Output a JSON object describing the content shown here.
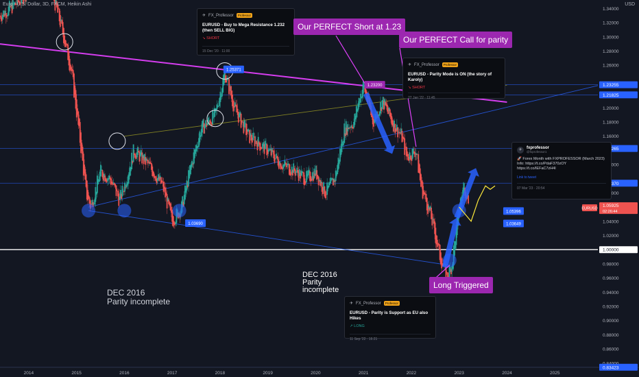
{
  "header": {
    "title": "Euro / U.S. Dollar, 3D, FXCM, Heikin Ashi",
    "currency": "USD"
  },
  "colors": {
    "background": "#131722",
    "grid_blue": "#2962ff",
    "trend_magenta": "#e040fb",
    "callout_purple": "#9c27b0",
    "olive_line": "#9e9d24",
    "up": "#26a69a",
    "down": "#ef5350",
    "arrow_blue": "#2962ff",
    "path_yellow": "#ffeb3b",
    "white_line": "#ffffff"
  },
  "chart_data": {
    "type": "candlestick",
    "style": "Heikin Ashi",
    "symbol": "EURUSD",
    "timeframe": "3D",
    "source": "FXCM",
    "x_ticks": [
      "2014",
      "2015",
      "2016",
      "2017",
      "2018",
      "2019",
      "2020",
      "2021",
      "2022",
      "2023",
      "2024",
      "2025"
    ],
    "y_ticks": [
      0.84,
      0.86,
      0.88,
      0.9,
      0.92,
      0.94,
      0.96,
      0.98,
      1.02,
      1.04,
      1.06,
      1.08,
      1.12,
      1.16,
      1.18,
      1.2,
      1.26,
      1.28,
      1.3,
      1.32,
      1.34
    ],
    "ylim": [
      0.834,
      1.352
    ],
    "xlim": [
      2013.4,
      2025.9
    ],
    "price_path": [
      [
        2013.4,
        1.33
      ],
      [
        2013.8,
        1.35
      ],
      [
        2014.2,
        1.38
      ],
      [
        2014.5,
        1.36
      ],
      [
        2014.7,
        1.31
      ],
      [
        2014.9,
        1.25
      ],
      [
        2015.1,
        1.14
      ],
      [
        2015.2,
        1.08
      ],
      [
        2015.3,
        1.06
      ],
      [
        2015.5,
        1.11
      ],
      [
        2015.7,
        1.1
      ],
      [
        2015.9,
        1.07
      ],
      [
        2016.0,
        1.09
      ],
      [
        2016.2,
        1.14
      ],
      [
        2016.5,
        1.12
      ],
      [
        2016.8,
        1.09
      ],
      [
        2017.0,
        1.04
      ],
      [
        2017.2,
        1.06
      ],
      [
        2017.4,
        1.12
      ],
      [
        2017.6,
        1.17
      ],
      [
        2017.9,
        1.19
      ],
      [
        2018.0,
        1.22
      ],
      [
        2018.1,
        1.25
      ],
      [
        2018.3,
        1.2
      ],
      [
        2018.6,
        1.16
      ],
      [
        2018.8,
        1.15
      ],
      [
        2019.0,
        1.14
      ],
      [
        2019.3,
        1.12
      ],
      [
        2019.6,
        1.11
      ],
      [
        2019.8,
        1.1
      ],
      [
        2020.0,
        1.11
      ],
      [
        2020.2,
        1.08
      ],
      [
        2020.4,
        1.1
      ],
      [
        2020.6,
        1.17
      ],
      [
        2020.8,
        1.18
      ],
      [
        2020.9,
        1.21
      ],
      [
        2021.0,
        1.232
      ],
      [
        2021.2,
        1.18
      ],
      [
        2021.4,
        1.21
      ],
      [
        2021.6,
        1.18
      ],
      [
        2021.8,
        1.16
      ],
      [
        2021.9,
        1.13
      ],
      [
        2022.1,
        1.14
      ],
      [
        2022.2,
        1.09
      ],
      [
        2022.4,
        1.05
      ],
      [
        2022.5,
        1.02
      ],
      [
        2022.6,
        0.99
      ],
      [
        2022.75,
        0.96
      ],
      [
        2022.85,
        0.98
      ],
      [
        2023.0,
        1.06
      ],
      [
        2023.1,
        1.09
      ],
      [
        2023.2,
        1.07
      ]
    ],
    "price_labels": [
      {
        "x": 2018.1,
        "y": 1.25371,
        "text": "1.25371"
      },
      {
        "x": 2021.05,
        "y": 1.232,
        "text": "1.23200"
      },
      {
        "x": 2017.3,
        "y": 1.0369,
        "text": "1.03690"
      },
      {
        "x": 2023.95,
        "y": 1.05396,
        "text": "1.05396"
      },
      {
        "x": 2023.95,
        "y": 1.03649,
        "text": "1.03649"
      }
    ],
    "axis_labels": [
      {
        "y": 1.23255,
        "text": "1.23255",
        "color": "#2962ff"
      },
      {
        "y": 1.21825,
        "text": "1.21825",
        "color": "#2962ff"
      },
      {
        "y": 1.14265,
        "text": "1.14265",
        "color": "#2962ff"
      },
      {
        "y": 1.0937,
        "text": "1.09370",
        "color": "#2962ff"
      },
      {
        "y": 1.0,
        "text": "1.00000",
        "color": "#ffffff"
      },
      {
        "y": 0.83423,
        "text": "0.83423",
        "color": "#2962ff"
      }
    ],
    "current": {
      "symbol": "EURUSD",
      "price": "1.05925",
      "countdown": "02:26:44",
      "y": 1.059
    },
    "horizontal_lines": [
      1.23255,
      1.21825,
      1.14265,
      1.0937,
      1.0,
      0.83423
    ],
    "support_bubbles": [
      [
        2015.25,
        1.055
      ],
      [
        2016.0,
        1.055
      ],
      [
        2017.15,
        1.055
      ],
      [
        2022.8,
        0.985
      ],
      [
        2023.0,
        1.055
      ]
    ],
    "resistance_circles": [
      [
        2014.75,
        1.293
      ],
      [
        2015.85,
        1.153
      ],
      [
        2018.1,
        1.252
      ],
      [
        2017.9,
        1.185
      ]
    ],
    "trendlines": [
      {
        "from": [
          2013.4,
          1.29
        ],
        "to": [
          2024.0,
          1.208
        ],
        "color": "#e040fb"
      },
      {
        "from": [
          2015.25,
          1.055
        ],
        "to": [
          2022.8,
          0.978
        ],
        "color": "#2962ff"
      },
      {
        "from": [
          2015.25,
          1.06
        ],
        "to": [
          2026.0,
          1.233
        ],
        "color": "#2962ff"
      },
      {
        "from": [
          2016.0,
          1.16
        ],
        "to": [
          2024.0,
          1.232
        ],
        "color": "#9e9d24"
      }
    ],
    "arrows": [
      {
        "from": [
          2021.05,
          1.22
        ],
        "to": [
          2021.6,
          1.135
        ],
        "color": "#2962ff"
      },
      {
        "from": [
          2022.7,
          0.975
        ],
        "to": [
          2022.95,
          1.045
        ],
        "color": "#2962ff"
      },
      {
        "from": [
          2022.95,
          1.045
        ],
        "to": [
          2023.35,
          1.115
        ],
        "color": "#2962ff"
      }
    ],
    "projection": [
      [
        2023.0,
        1.06
      ],
      [
        2023.25,
        1.04
      ],
      [
        2023.4,
        1.07
      ],
      [
        2023.55,
        1.09
      ],
      [
        2023.65,
        1.085
      ],
      [
        2023.75,
        1.09
      ]
    ]
  },
  "ideas": [
    {
      "author": "FX_Professor",
      "badge": "Professor",
      "title": "EURUSD - Buy to Mega Resistance 1.232 (then SELL BIG)",
      "direction": "↘ SHORT",
      "date": "15 Dec '20 · 11:00"
    },
    {
      "author": "FX_Professor",
      "badge": "Professor",
      "title": "EURUSD - Parity Mode is ON (the story of Karoly)",
      "direction": "↘ SHORT",
      "date": "27 Jan '22 · 11:45"
    },
    {
      "author": "FX_Professor",
      "badge": "Professor",
      "title": "EURUSD - Parity is Support as EU also Hikes",
      "direction": "↗ LONG",
      "date": "11 Sep '22 · 16:21"
    }
  ],
  "tweet": {
    "name": "fxprofessor",
    "handle": "@fxprofessor1",
    "text": "🚀 Forex Month with FXPROFESSOR (March 2023) Info: https://t.co/PdaF370zOY https://t.co/IEFaC7zH4l",
    "link": "Link to tweet",
    "date": "07 Mar '23 · 20:54"
  },
  "callouts": {
    "short": "Our PERFECT Short at 1.23",
    "parity": "Our PERFECT Call for parity",
    "long": "Long Triggered"
  },
  "notes": {
    "dec2016_left_1": "DEC 2016",
    "dec2016_left_2": "Parity incomplete",
    "dec2016_right_1": "DEC 2016",
    "dec2016_right_2": "Parity",
    "dec2016_right_3": "incomplete"
  }
}
